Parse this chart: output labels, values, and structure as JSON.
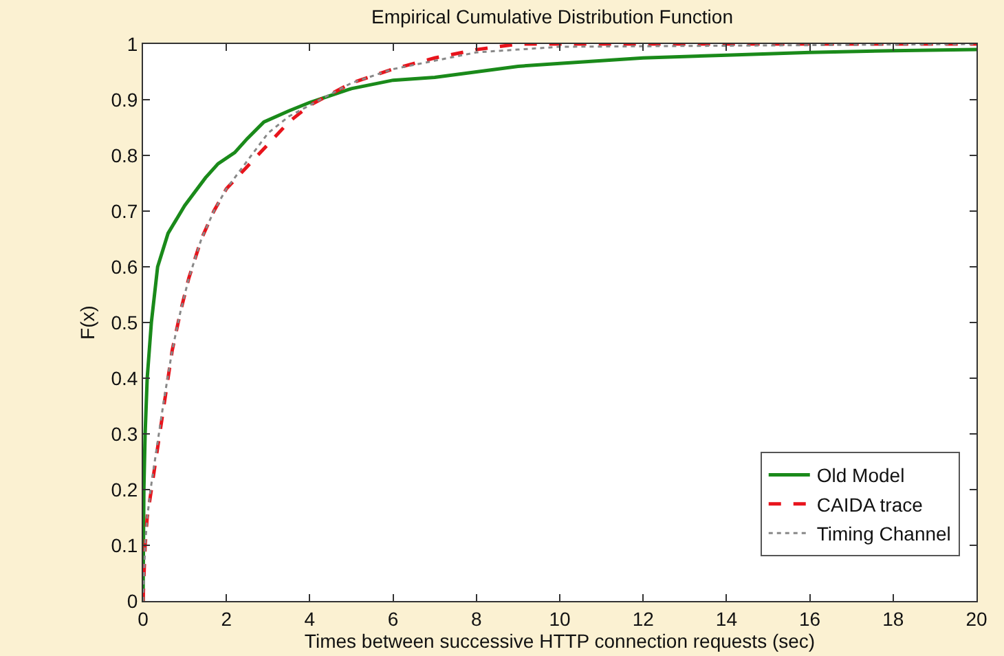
{
  "chart_data": {
    "type": "line",
    "title": "Empirical Cumulative Distribution Function",
    "xlabel": "Times between successive HTTP connection requests (sec)",
    "ylabel": "F(x)",
    "xlim": [
      0,
      20
    ],
    "xticks": [
      0,
      2,
      4,
      6,
      8,
      10,
      12,
      14,
      16,
      18,
      20
    ],
    "ylim": [
      0,
      1
    ],
    "yticks": [
      0,
      0.1,
      0.2,
      0.3,
      0.4,
      0.5,
      0.6,
      0.7,
      0.8,
      0.9,
      1
    ],
    "grid": false,
    "legend": "bottom right",
    "marker": "none",
    "series": [
      {
        "name": "Old Model",
        "color": "#1a8a1a",
        "line_style": "solid",
        "x": [
          0,
          0.02,
          0.05,
          0.1,
          0.2,
          0.35,
          0.6,
          1,
          1.5,
          1.8,
          2.2,
          2.5,
          2.9,
          3.5,
          4,
          5,
          6,
          7,
          8,
          9,
          10,
          12,
          14,
          16,
          18,
          20
        ],
        "values": [
          0,
          0.2,
          0.3,
          0.4,
          0.5,
          0.6,
          0.66,
          0.71,
          0.76,
          0.785,
          0.805,
          0.83,
          0.86,
          0.88,
          0.895,
          0.92,
          0.935,
          0.94,
          0.95,
          0.96,
          0.965,
          0.975,
          0.98,
          0.985,
          0.988,
          0.99
        ]
      },
      {
        "name": "CAIDA trace",
        "color": "#e8141c",
        "line_style": "dashed",
        "x": [
          0,
          0.05,
          0.1,
          0.2,
          0.3,
          0.5,
          0.7,
          0.9,
          1.1,
          1.4,
          1.7,
          2,
          2.5,
          3,
          3.5,
          4,
          4.5,
          5,
          6,
          7,
          8,
          9,
          20
        ],
        "values": [
          0,
          0.1,
          0.15,
          0.2,
          0.25,
          0.35,
          0.45,
          0.52,
          0.58,
          0.65,
          0.7,
          0.74,
          0.78,
          0.82,
          0.86,
          0.89,
          0.91,
          0.93,
          0.955,
          0.975,
          0.99,
          1,
          1
        ]
      },
      {
        "name": "Timing Channel",
        "color": "#888888",
        "line_style": "dotted",
        "x": [
          0,
          0.05,
          0.1,
          0.2,
          0.3,
          0.5,
          0.7,
          0.9,
          1.1,
          1.4,
          1.7,
          2,
          2.5,
          3,
          3.5,
          4,
          4.5,
          5,
          6,
          7,
          8,
          9,
          10,
          20
        ],
        "values": [
          0,
          0.1,
          0.15,
          0.21,
          0.26,
          0.36,
          0.45,
          0.52,
          0.58,
          0.65,
          0.7,
          0.74,
          0.79,
          0.84,
          0.87,
          0.89,
          0.91,
          0.93,
          0.955,
          0.97,
          0.985,
          0.99,
          0.995,
          1
        ]
      }
    ]
  }
}
